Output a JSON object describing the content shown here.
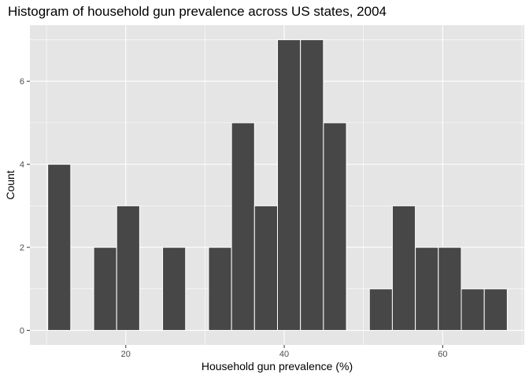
{
  "chart_data": {
    "type": "bar",
    "title": "Histogram of household gun prevalence across US states, 2004",
    "xlabel": "Household gun prevalence (%)",
    "ylabel": "Count",
    "xlim": [
      7.9,
      70.3
    ],
    "ylim": [
      -0.35,
      7.35
    ],
    "bin_width": 2.9,
    "bins": [
      {
        "x0": 10.15,
        "x1": 13.05,
        "count": 4
      },
      {
        "x0": 13.05,
        "x1": 15.95,
        "count": 0
      },
      {
        "x0": 15.95,
        "x1": 18.85,
        "count": 2
      },
      {
        "x0": 18.85,
        "x1": 21.75,
        "count": 3
      },
      {
        "x0": 21.75,
        "x1": 24.65,
        "count": 0
      },
      {
        "x0": 24.65,
        "x1": 27.55,
        "count": 2
      },
      {
        "x0": 27.55,
        "x1": 30.45,
        "count": 0
      },
      {
        "x0": 30.45,
        "x1": 33.35,
        "count": 2
      },
      {
        "x0": 33.35,
        "x1": 36.25,
        "count": 5
      },
      {
        "x0": 36.25,
        "x1": 39.15,
        "count": 3
      },
      {
        "x0": 39.15,
        "x1": 42.05,
        "count": 7
      },
      {
        "x0": 42.05,
        "x1": 44.95,
        "count": 7
      },
      {
        "x0": 44.95,
        "x1": 47.85,
        "count": 5
      },
      {
        "x0": 47.85,
        "x1": 50.75,
        "count": 0
      },
      {
        "x0": 50.75,
        "x1": 53.65,
        "count": 1
      },
      {
        "x0": 53.65,
        "x1": 56.55,
        "count": 3
      },
      {
        "x0": 56.55,
        "x1": 59.45,
        "count": 2
      },
      {
        "x0": 59.45,
        "x1": 62.35,
        "count": 2
      },
      {
        "x0": 62.35,
        "x1": 65.25,
        "count": 1
      },
      {
        "x0": 65.25,
        "x1": 68.15,
        "count": 1
      }
    ],
    "x_ticks": [
      20,
      40,
      60
    ],
    "y_ticks": [
      0,
      2,
      4,
      6
    ],
    "grid": true,
    "legend": "none",
    "colors": {
      "panel": "#e5e5e5",
      "grid_major": "#ffffff",
      "bar_fill": "#474747",
      "bar_stroke": "#ffffff",
      "tick": "#333333"
    }
  }
}
